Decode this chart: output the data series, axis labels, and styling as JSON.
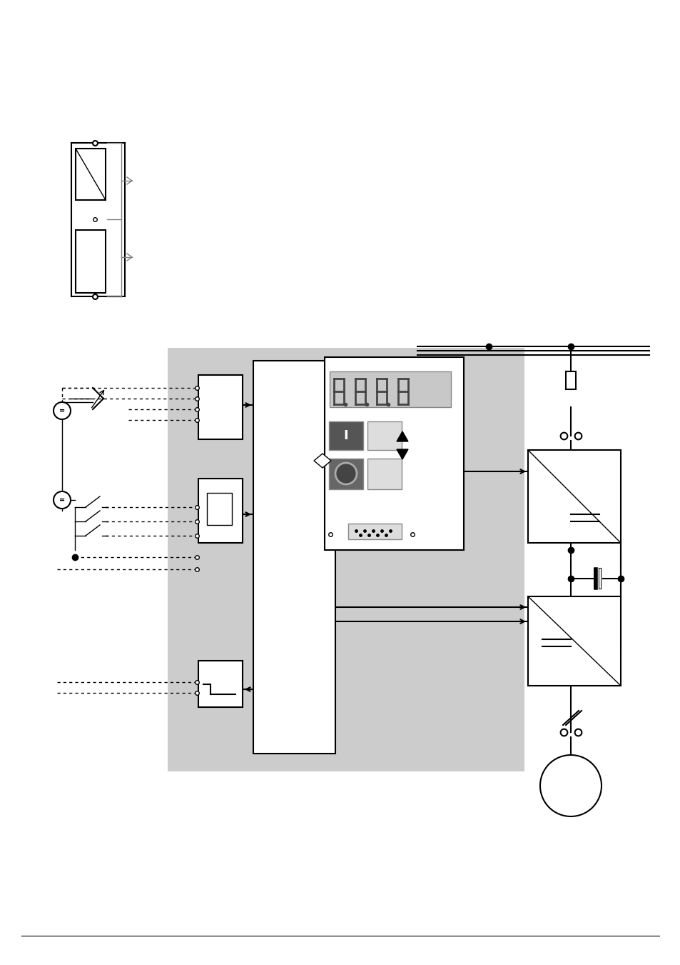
{
  "bg_color": "#ffffff",
  "gray_bg": "#cccccc",
  "figsize": [
    9.54,
    13.51
  ],
  "dpi": 100
}
